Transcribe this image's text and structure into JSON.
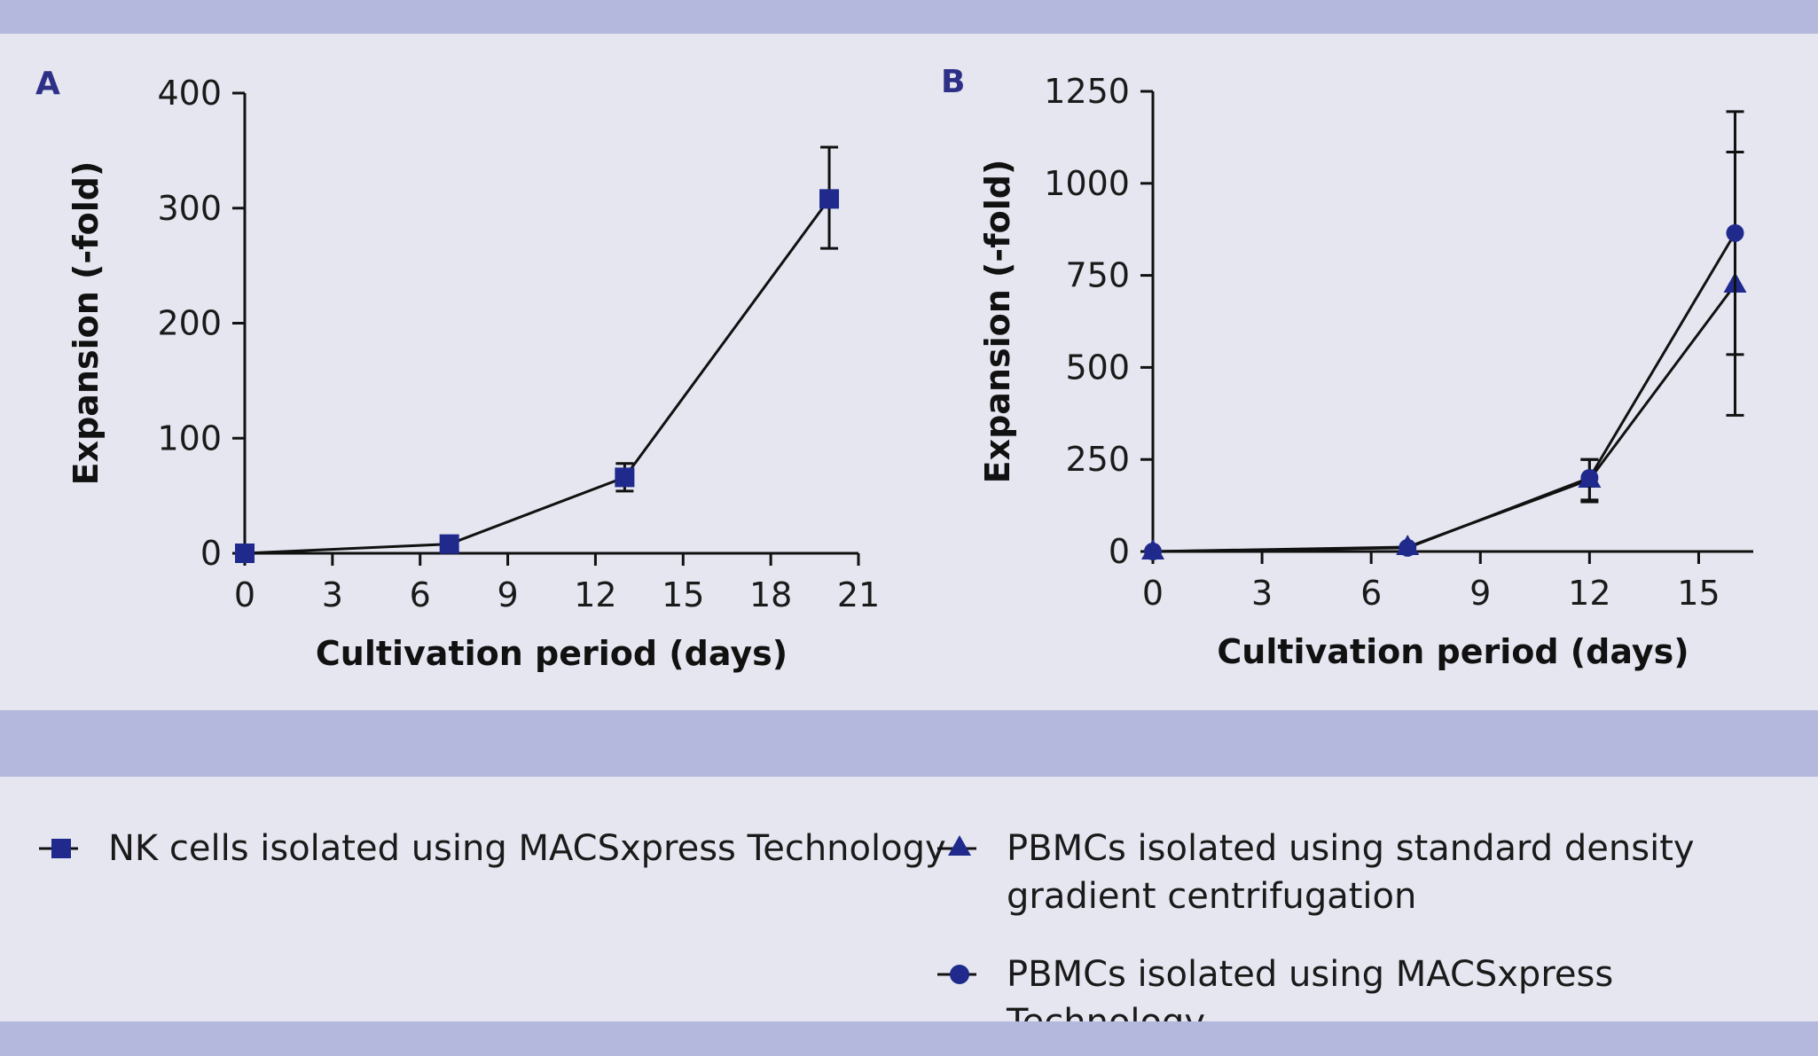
{
  "colors": {
    "band": "#b4b8dc",
    "background": "#e5e6f0",
    "marker": "#1f2a8c",
    "panel_letter": "#2d3086",
    "line": "#111111"
  },
  "chart_data": [
    {
      "panel": "A",
      "type": "line",
      "xlabel": "Cultivation period (days)",
      "ylabel": "Expansion (-fold)",
      "xlim": [
        0,
        21
      ],
      "ylim": [
        0,
        400
      ],
      "xticks": [
        0,
        3,
        6,
        9,
        12,
        15,
        18,
        21
      ],
      "yticks": [
        0,
        100,
        200,
        300,
        400
      ],
      "grid": false,
      "series": [
        {
          "name": "NK cells isolated using MACSxpress Technology",
          "marker": "square",
          "x": [
            0,
            7,
            13,
            20
          ],
          "y": [
            0,
            8,
            66,
            308
          ],
          "err_low": [
            0,
            0,
            54,
            265
          ],
          "err_high": [
            0,
            0,
            78,
            353
          ]
        }
      ]
    },
    {
      "panel": "B",
      "type": "line",
      "xlabel": "Cultivation period (days)",
      "ylabel": "Expansion (-fold)",
      "xlim": [
        0,
        16.5
      ],
      "ylim": [
        0,
        1250
      ],
      "xticks": [
        0,
        3,
        6,
        9,
        12,
        15
      ],
      "yticks": [
        0,
        250,
        500,
        750,
        1000,
        1250
      ],
      "grid": false,
      "series": [
        {
          "name": "PBMCs isolated using standard density gradient centrifugation",
          "marker": "triangle",
          "x": [
            0,
            7,
            12,
            16
          ],
          "y": [
            0,
            12,
            195,
            725
          ],
          "err_low": [
            0,
            0,
            140,
            535
          ],
          "err_high": [
            0,
            0,
            250,
            1085
          ]
        },
        {
          "name": "PBMCs isolated using MACSxpress Technology",
          "marker": "circle",
          "x": [
            0,
            7,
            12,
            16
          ],
          "y": [
            0,
            10,
            200,
            865
          ],
          "err_low": [
            0,
            0,
            135,
            370
          ],
          "err_high": [
            0,
            0,
            250,
            1195
          ]
        }
      ]
    }
  ],
  "legend": [
    {
      "label": "NK cells isolated using MACSxpress Technology",
      "marker": "square"
    },
    {
      "label": "PBMCs isolated using standard density\ngradient centrifugation",
      "marker": "triangle"
    },
    {
      "label": "PBMCs isolated using MACSxpress Technology",
      "marker": "circle"
    }
  ]
}
